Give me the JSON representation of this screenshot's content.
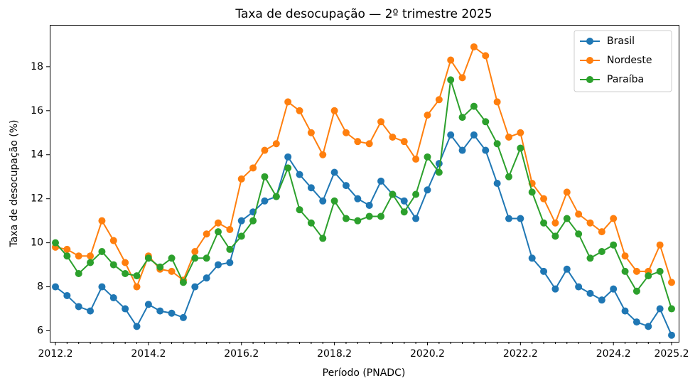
{
  "chart_data": {
    "type": "line",
    "title": "Taxa de desocupação — 2º trimestre 2025",
    "x_label": "Período (PNADC)",
    "y_label": "Taxa de desocupação (%)",
    "categories": [
      "2012.2",
      null,
      null,
      null,
      null,
      null,
      null,
      null,
      "2014.2",
      null,
      null,
      null,
      null,
      null,
      null,
      null,
      "2016.2",
      null,
      null,
      null,
      null,
      null,
      null,
      null,
      "2018.2",
      null,
      null,
      null,
      null,
      null,
      null,
      null,
      "2020.2",
      null,
      null,
      null,
      null,
      null,
      null,
      null,
      "2022.2",
      null,
      null,
      null,
      null,
      null,
      null,
      null,
      "2024.2",
      null,
      null,
      null,
      null,
      "2025.2"
    ],
    "series": [
      {
        "name": "Brasil",
        "color": "#1f77b4",
        "values": [
          8.0,
          7.6,
          7.1,
          6.9,
          8.0,
          7.5,
          7.0,
          6.2,
          7.2,
          6.9,
          6.8,
          6.6,
          8.0,
          8.4,
          9.0,
          9.1,
          11.0,
          11.4,
          11.9,
          12.1,
          13.9,
          13.1,
          12.5,
          11.9,
          13.2,
          12.6,
          12.0,
          11.7,
          12.8,
          12.2,
          11.9,
          11.1,
          12.4,
          13.6,
          14.9,
          14.2,
          14.9,
          14.2,
          12.7,
          11.1,
          11.1,
          9.3,
          8.7,
          7.9,
          8.8,
          8.0,
          7.7,
          7.4,
          7.9,
          6.9,
          6.4,
          6.2,
          7.0,
          5.8
        ]
      },
      {
        "name": "Nordeste",
        "color": "#ff7f0e",
        "values": [
          9.8,
          9.7,
          9.4,
          9.4,
          11.0,
          10.1,
          9.1,
          8.0,
          9.4,
          8.8,
          8.7,
          8.3,
          9.6,
          10.4,
          10.9,
          10.6,
          12.9,
          13.4,
          14.2,
          14.5,
          16.4,
          16.0,
          15.0,
          14.0,
          16.0,
          15.0,
          14.6,
          14.5,
          15.5,
          14.8,
          14.6,
          13.8,
          15.8,
          16.5,
          18.3,
          17.5,
          18.9,
          18.5,
          16.4,
          14.8,
          15.0,
          12.7,
          12.0,
          10.9,
          12.3,
          11.3,
          10.9,
          10.5,
          11.1,
          9.4,
          8.7,
          8.7,
          9.9,
          8.2
        ]
      },
      {
        "name": "Paraíba",
        "color": "#2ca02c",
        "values": [
          10.0,
          9.4,
          8.6,
          9.1,
          9.6,
          9.0,
          8.6,
          8.5,
          9.3,
          8.9,
          9.3,
          8.2,
          9.3,
          9.3,
          10.5,
          9.7,
          10.3,
          11.0,
          13.0,
          12.1,
          13.4,
          11.5,
          10.9,
          10.2,
          11.9,
          11.1,
          11.0,
          11.2,
          11.2,
          12.2,
          11.4,
          12.2,
          13.9,
          13.2,
          17.4,
          15.7,
          16.2,
          15.5,
          14.5,
          13.0,
          14.3,
          12.3,
          10.9,
          10.3,
          11.1,
          10.4,
          9.3,
          9.6,
          9.9,
          8.7,
          7.8,
          8.5,
          8.7,
          7.0
        ]
      }
    ],
    "ylim": [
      5.5,
      19.9
    ],
    "yticks": [
      6,
      8,
      10,
      12,
      14,
      16,
      18
    ],
    "legend": "upper right"
  }
}
